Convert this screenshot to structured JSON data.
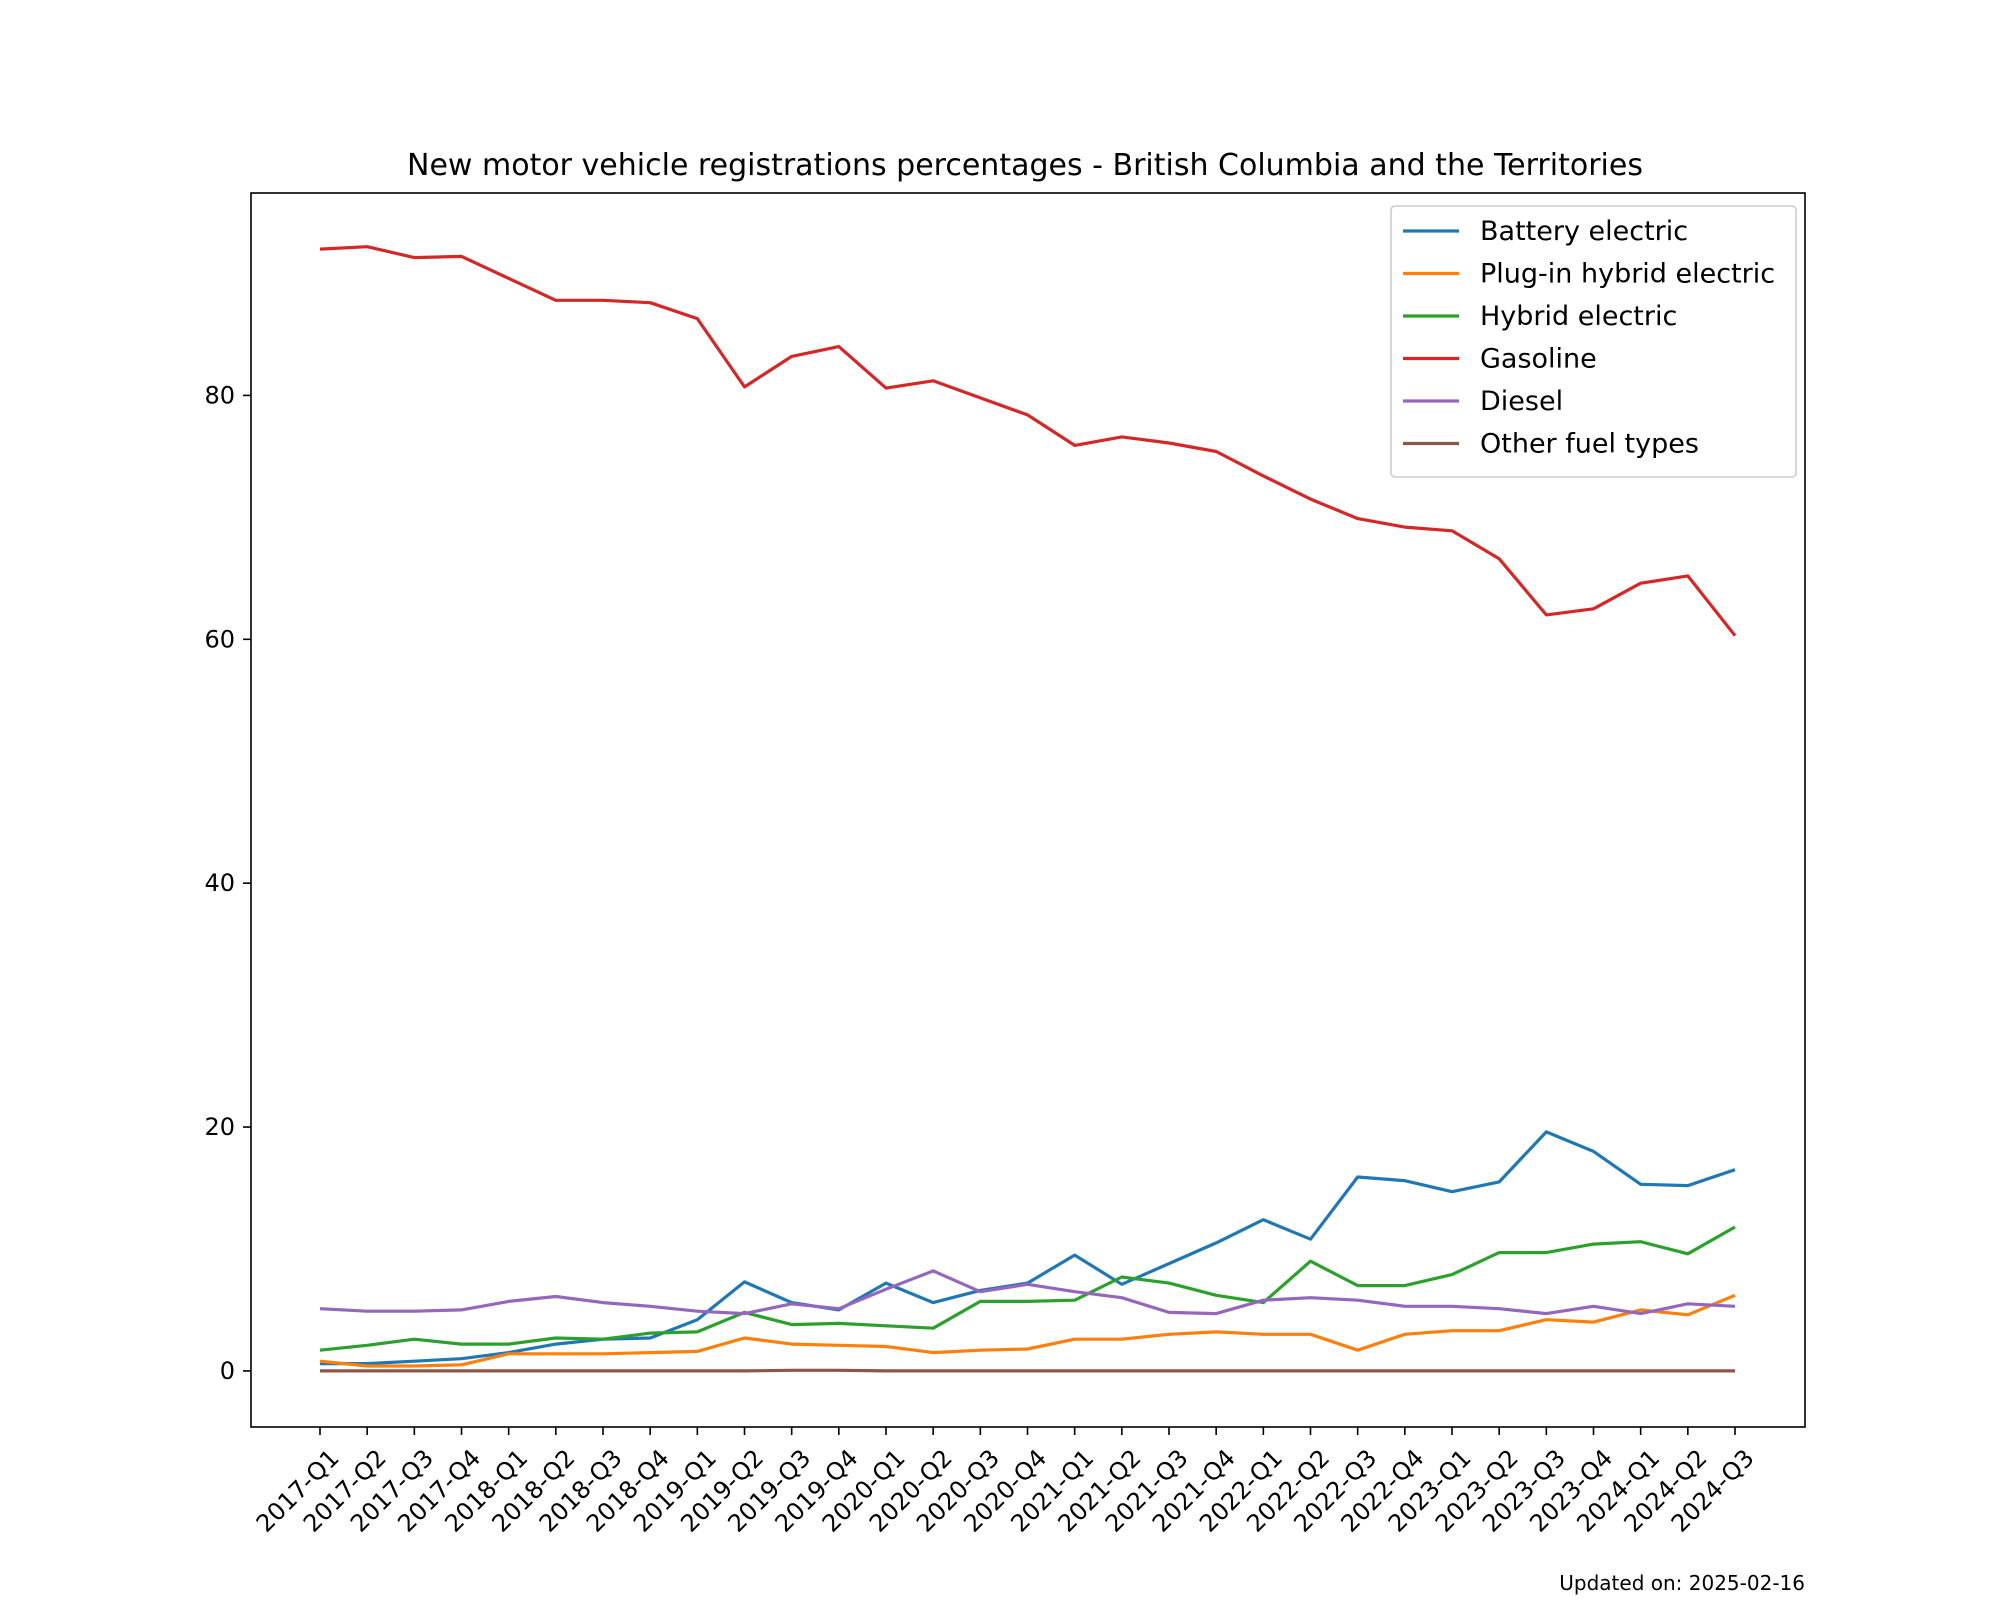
{
  "chart_data": {
    "type": "line",
    "title": "New motor vehicle registrations percentages - British Columbia and the Territories",
    "xlabel": "",
    "ylabel": "",
    "categories": [
      "2017-Q1",
      "2017-Q2",
      "2017-Q3",
      "2017-Q4",
      "2018-Q1",
      "2018-Q2",
      "2018-Q3",
      "2018-Q4",
      "2019-Q1",
      "2019-Q2",
      "2019-Q3",
      "2019-Q4",
      "2020-Q1",
      "2020-Q2",
      "2020-Q3",
      "2020-Q4",
      "2021-Q1",
      "2021-Q2",
      "2021-Q3",
      "2021-Q4",
      "2022-Q1",
      "2022-Q2",
      "2022-Q3",
      "2022-Q4",
      "2023-Q1",
      "2023-Q2",
      "2023-Q3",
      "2023-Q4",
      "2024-Q1",
      "2024-Q2",
      "2024-Q3"
    ],
    "ylim": [
      -4.6,
      96.6
    ],
    "yticks": [
      0,
      20,
      40,
      60,
      80
    ],
    "grid": false,
    "legend_position": "top-right",
    "series": [
      {
        "name": "Battery electric",
        "color": "#1f77b4",
        "values": [
          0.6,
          0.6,
          0.8,
          1.0,
          1.5,
          2.2,
          2.6,
          2.7,
          4.2,
          7.3,
          5.6,
          5.0,
          7.2,
          5.6,
          6.6,
          7.2,
          9.5,
          7.1,
          8.8,
          10.5,
          12.4,
          10.8,
          15.9,
          15.6,
          14.7,
          15.5,
          19.6,
          18.0,
          15.3,
          15.2,
          16.5
        ]
      },
      {
        "name": "Plug-in hybrid electric",
        "color": "#ff7f0e",
        "values": [
          0.8,
          0.4,
          0.4,
          0.5,
          1.4,
          1.4,
          1.4,
          1.5,
          1.6,
          2.7,
          2.2,
          2.1,
          2.0,
          1.5,
          1.7,
          1.8,
          2.6,
          2.6,
          3.0,
          3.2,
          3.0,
          3.0,
          1.7,
          3.0,
          3.3,
          3.3,
          4.2,
          4.0,
          5.0,
          4.6,
          6.2
        ]
      },
      {
        "name": "Hybrid electric",
        "color": "#2ca02c",
        "values": [
          1.7,
          2.1,
          2.6,
          2.2,
          2.2,
          2.7,
          2.6,
          3.1,
          3.2,
          4.8,
          3.8,
          3.9,
          3.7,
          3.5,
          5.7,
          5.7,
          5.8,
          7.7,
          7.2,
          6.2,
          5.6,
          9.0,
          7.0,
          7.0,
          7.9,
          9.7,
          9.7,
          10.4,
          10.6,
          9.6,
          11.8
        ]
      },
      {
        "name": "Gasoline",
        "color": "#d62728",
        "values": [
          92.0,
          92.2,
          91.3,
          91.4,
          89.6,
          87.8,
          87.8,
          87.6,
          86.3,
          80.7,
          83.2,
          84.0,
          80.6,
          81.2,
          79.8,
          78.4,
          75.9,
          76.6,
          76.1,
          75.4,
          73.4,
          71.5,
          69.9,
          69.2,
          68.9,
          66.6,
          62.0,
          62.5,
          64.6,
          65.2,
          60.3
        ]
      },
      {
        "name": "Diesel",
        "color": "#9467bd",
        "values": [
          5.1,
          4.9,
          4.9,
          5.0,
          5.7,
          6.1,
          5.6,
          5.3,
          4.9,
          4.7,
          5.5,
          5.1,
          6.7,
          8.2,
          6.5,
          7.1,
          6.5,
          6.0,
          4.8,
          4.7,
          5.8,
          6.0,
          5.8,
          5.3,
          5.3,
          5.1,
          4.7,
          5.3,
          4.7,
          5.5,
          5.3
        ]
      },
      {
        "name": "Other fuel types",
        "color": "#8c564b",
        "values": [
          0.0,
          0.0,
          0.0,
          0.0,
          0.0,
          0.0,
          0.0,
          0.0,
          0.0,
          0.0,
          0.05,
          0.05,
          0.0,
          0.0,
          0.0,
          0.0,
          0.0,
          0.0,
          0.0,
          0.0,
          0.0,
          0.0,
          0.0,
          0.0,
          0.0,
          0.0,
          0.0,
          0.0,
          0.0,
          0.0,
          0.0
        ]
      }
    ],
    "footnote": "Updated on: 2025-02-16"
  }
}
